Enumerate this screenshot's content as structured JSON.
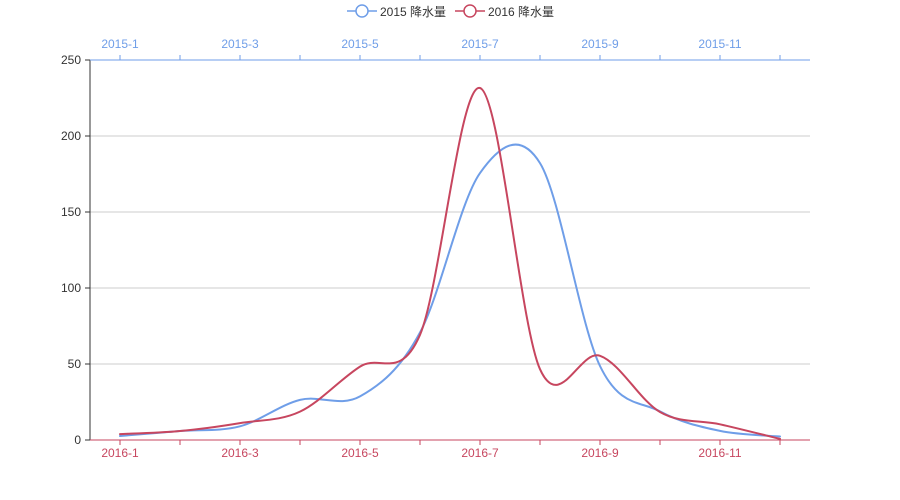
{
  "chart_data": {
    "type": "line",
    "legend": {
      "position": "top-center",
      "items": [
        {
          "label": "2015 降水量",
          "color": "#6f9ee8"
        },
        {
          "label": "2016 降水量",
          "color": "#c7465f"
        }
      ]
    },
    "y_axis": {
      "range": [
        0,
        250
      ],
      "ticks": [
        {
          "value": 0,
          "label": "0"
        },
        {
          "value": 50,
          "label": "50"
        },
        {
          "value": 100,
          "label": "100"
        },
        {
          "value": 150,
          "label": "150"
        },
        {
          "value": 200,
          "label": "200"
        },
        {
          "value": 250,
          "label": "250"
        }
      ],
      "grid": true
    },
    "x_axis_top": {
      "color": "#6f9ee8",
      "categories": [
        "2015-1",
        "2015-2",
        "2015-3",
        "2015-4",
        "2015-5",
        "2015-6",
        "2015-7",
        "2015-8",
        "2015-9",
        "2015-10",
        "2015-11",
        "2015-12"
      ],
      "tick_labels": [
        "2015-1",
        "2015-3",
        "2015-5",
        "2015-7",
        "2015-9",
        "2015-11"
      ]
    },
    "x_axis_bottom": {
      "color": "#c7465f",
      "categories": [
        "2016-1",
        "2016-2",
        "2016-3",
        "2016-4",
        "2016-5",
        "2016-6",
        "2016-7",
        "2016-8",
        "2016-9",
        "2016-10",
        "2016-11",
        "2016-12"
      ],
      "tick_labels": [
        "2016-1",
        "2016-3",
        "2016-5",
        "2016-7",
        "2016-9",
        "2016-11"
      ]
    },
    "series": [
      {
        "name": "2015 降水量",
        "axis": "top",
        "color": "#6f9ee8",
        "values": [
          2.6,
          5.9,
          9.0,
          26.4,
          28.7,
          70.7,
          175.6,
          182.2,
          48.7,
          18.8,
          6.0,
          2.3
        ]
      },
      {
        "name": "2016 降水量",
        "axis": "bottom",
        "color": "#c7465f",
        "values": [
          3.9,
          5.9,
          11.1,
          18.7,
          48.3,
          69.2,
          231.6,
          46.6,
          55.4,
          18.4,
          10.3,
          0.7
        ]
      }
    ]
  }
}
